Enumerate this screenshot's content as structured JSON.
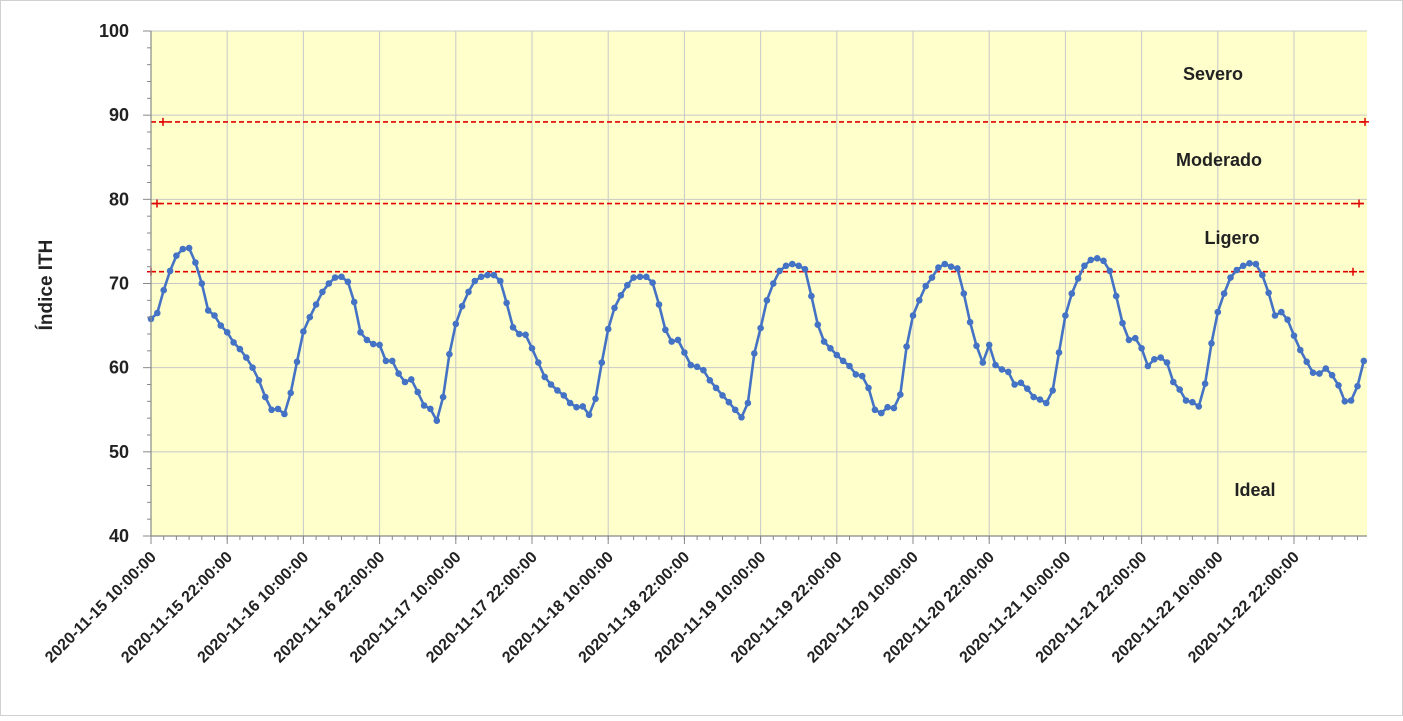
{
  "chart_data": {
    "type": "line",
    "title": "",
    "xlabel": "",
    "ylabel": "Índice ITH",
    "ylim": [
      40,
      100
    ],
    "yticks": [
      40,
      50,
      60,
      70,
      80,
      90,
      100
    ],
    "grid": true,
    "x_tick_labels": [
      "2020-11-15 10:00:00",
      "2020-11-15 22:00:00",
      "2020-11-16 10:00:00",
      "2020-11-16 22:00:00",
      "2020-11-17 10:00:00",
      "2020-11-17 22:00:00",
      "2020-11-18 10:00:00",
      "2020-11-18 22:00:00",
      "2020-11-19 10:00:00",
      "2020-11-19 22:00:00",
      "2020-11-20 10:00:00",
      "2020-11-20 22:00:00",
      "2020-11-21 10:00:00",
      "2020-11-21 22:00:00",
      "2020-11-22 10:00:00",
      "2020-11-22 22:00:00"
    ],
    "thresholds": [
      {
        "value": 89.2,
        "color": "#e00000"
      },
      {
        "value": 79.5,
        "color": "#e00000"
      },
      {
        "value": 71.4,
        "color": "#e00000"
      }
    ],
    "zone_labels": [
      {
        "text": "Severo",
        "y": 95
      },
      {
        "text": "Moderado",
        "y": 84.8
      },
      {
        "text": "Ligero",
        "y": 75.5
      },
      {
        "text": "Ideal",
        "y": 45.6
      }
    ],
    "series": [
      {
        "color": "#4472c4",
        "values": [
          65.8,
          66.5,
          69.2,
          71.5,
          73.3,
          74.1,
          74.2,
          72.5,
          70.0,
          66.8,
          66.2,
          65.0,
          64.2,
          63.0,
          62.2,
          61.2,
          60.0,
          58.5,
          56.5,
          55.0,
          55.1,
          54.5,
          57.0,
          60.7,
          64.3,
          66.0,
          67.5,
          69.0,
          70.0,
          70.7,
          70.8,
          70.2,
          67.8,
          64.2,
          63.3,
          62.8,
          62.7,
          60.8,
          60.8,
          59.3,
          58.3,
          58.6,
          57.1,
          55.5,
          55.1,
          53.7,
          56.5,
          61.6,
          65.2,
          67.3,
          69.0,
          70.3,
          70.8,
          71.0,
          71.0,
          70.3,
          67.7,
          64.8,
          64.0,
          63.9,
          62.3,
          60.6,
          58.9,
          58.0,
          57.3,
          56.7,
          55.8,
          55.3,
          55.4,
          54.4,
          56.3,
          60.6,
          64.6,
          67.1,
          68.6,
          69.8,
          70.7,
          70.8,
          70.8,
          70.1,
          67.5,
          64.5,
          63.1,
          63.3,
          61.8,
          60.3,
          60.1,
          59.7,
          58.5,
          57.6,
          56.7,
          55.9,
          55.0,
          54.1,
          55.8,
          61.7,
          64.7,
          68.0,
          70.0,
          71.5,
          72.1,
          72.3,
          72.1,
          71.7,
          68.5,
          65.1,
          63.1,
          62.3,
          61.5,
          60.8,
          60.2,
          59.2,
          59.0,
          57.6,
          55.0,
          54.6,
          55.3,
          55.2,
          56.8,
          62.5,
          66.2,
          68.0,
          69.7,
          70.7,
          71.9,
          72.3,
          72.0,
          71.8,
          68.8,
          65.4,
          62.6,
          60.6,
          62.7,
          60.3,
          59.8,
          59.5,
          58.0,
          58.2,
          57.5,
          56.5,
          56.2,
          55.8,
          57.3,
          61.8,
          66.2,
          68.8,
          70.6,
          72.1,
          72.8,
          73.0,
          72.7,
          71.5,
          68.5,
          65.3,
          63.3,
          63.5,
          62.3,
          60.2,
          61.0,
          61.2,
          60.6,
          58.3,
          57.4,
          56.1,
          55.9,
          55.4,
          58.1,
          62.9,
          66.6,
          68.8,
          70.7,
          71.6,
          72.1,
          72.4,
          72.3,
          71.0,
          68.9,
          66.2,
          66.6,
          65.7,
          63.8,
          62.1,
          60.7,
          59.4,
          59.3,
          59.9,
          59.1,
          57.9,
          56.0,
          56.1,
          57.8,
          60.8
        ]
      }
    ]
  }
}
